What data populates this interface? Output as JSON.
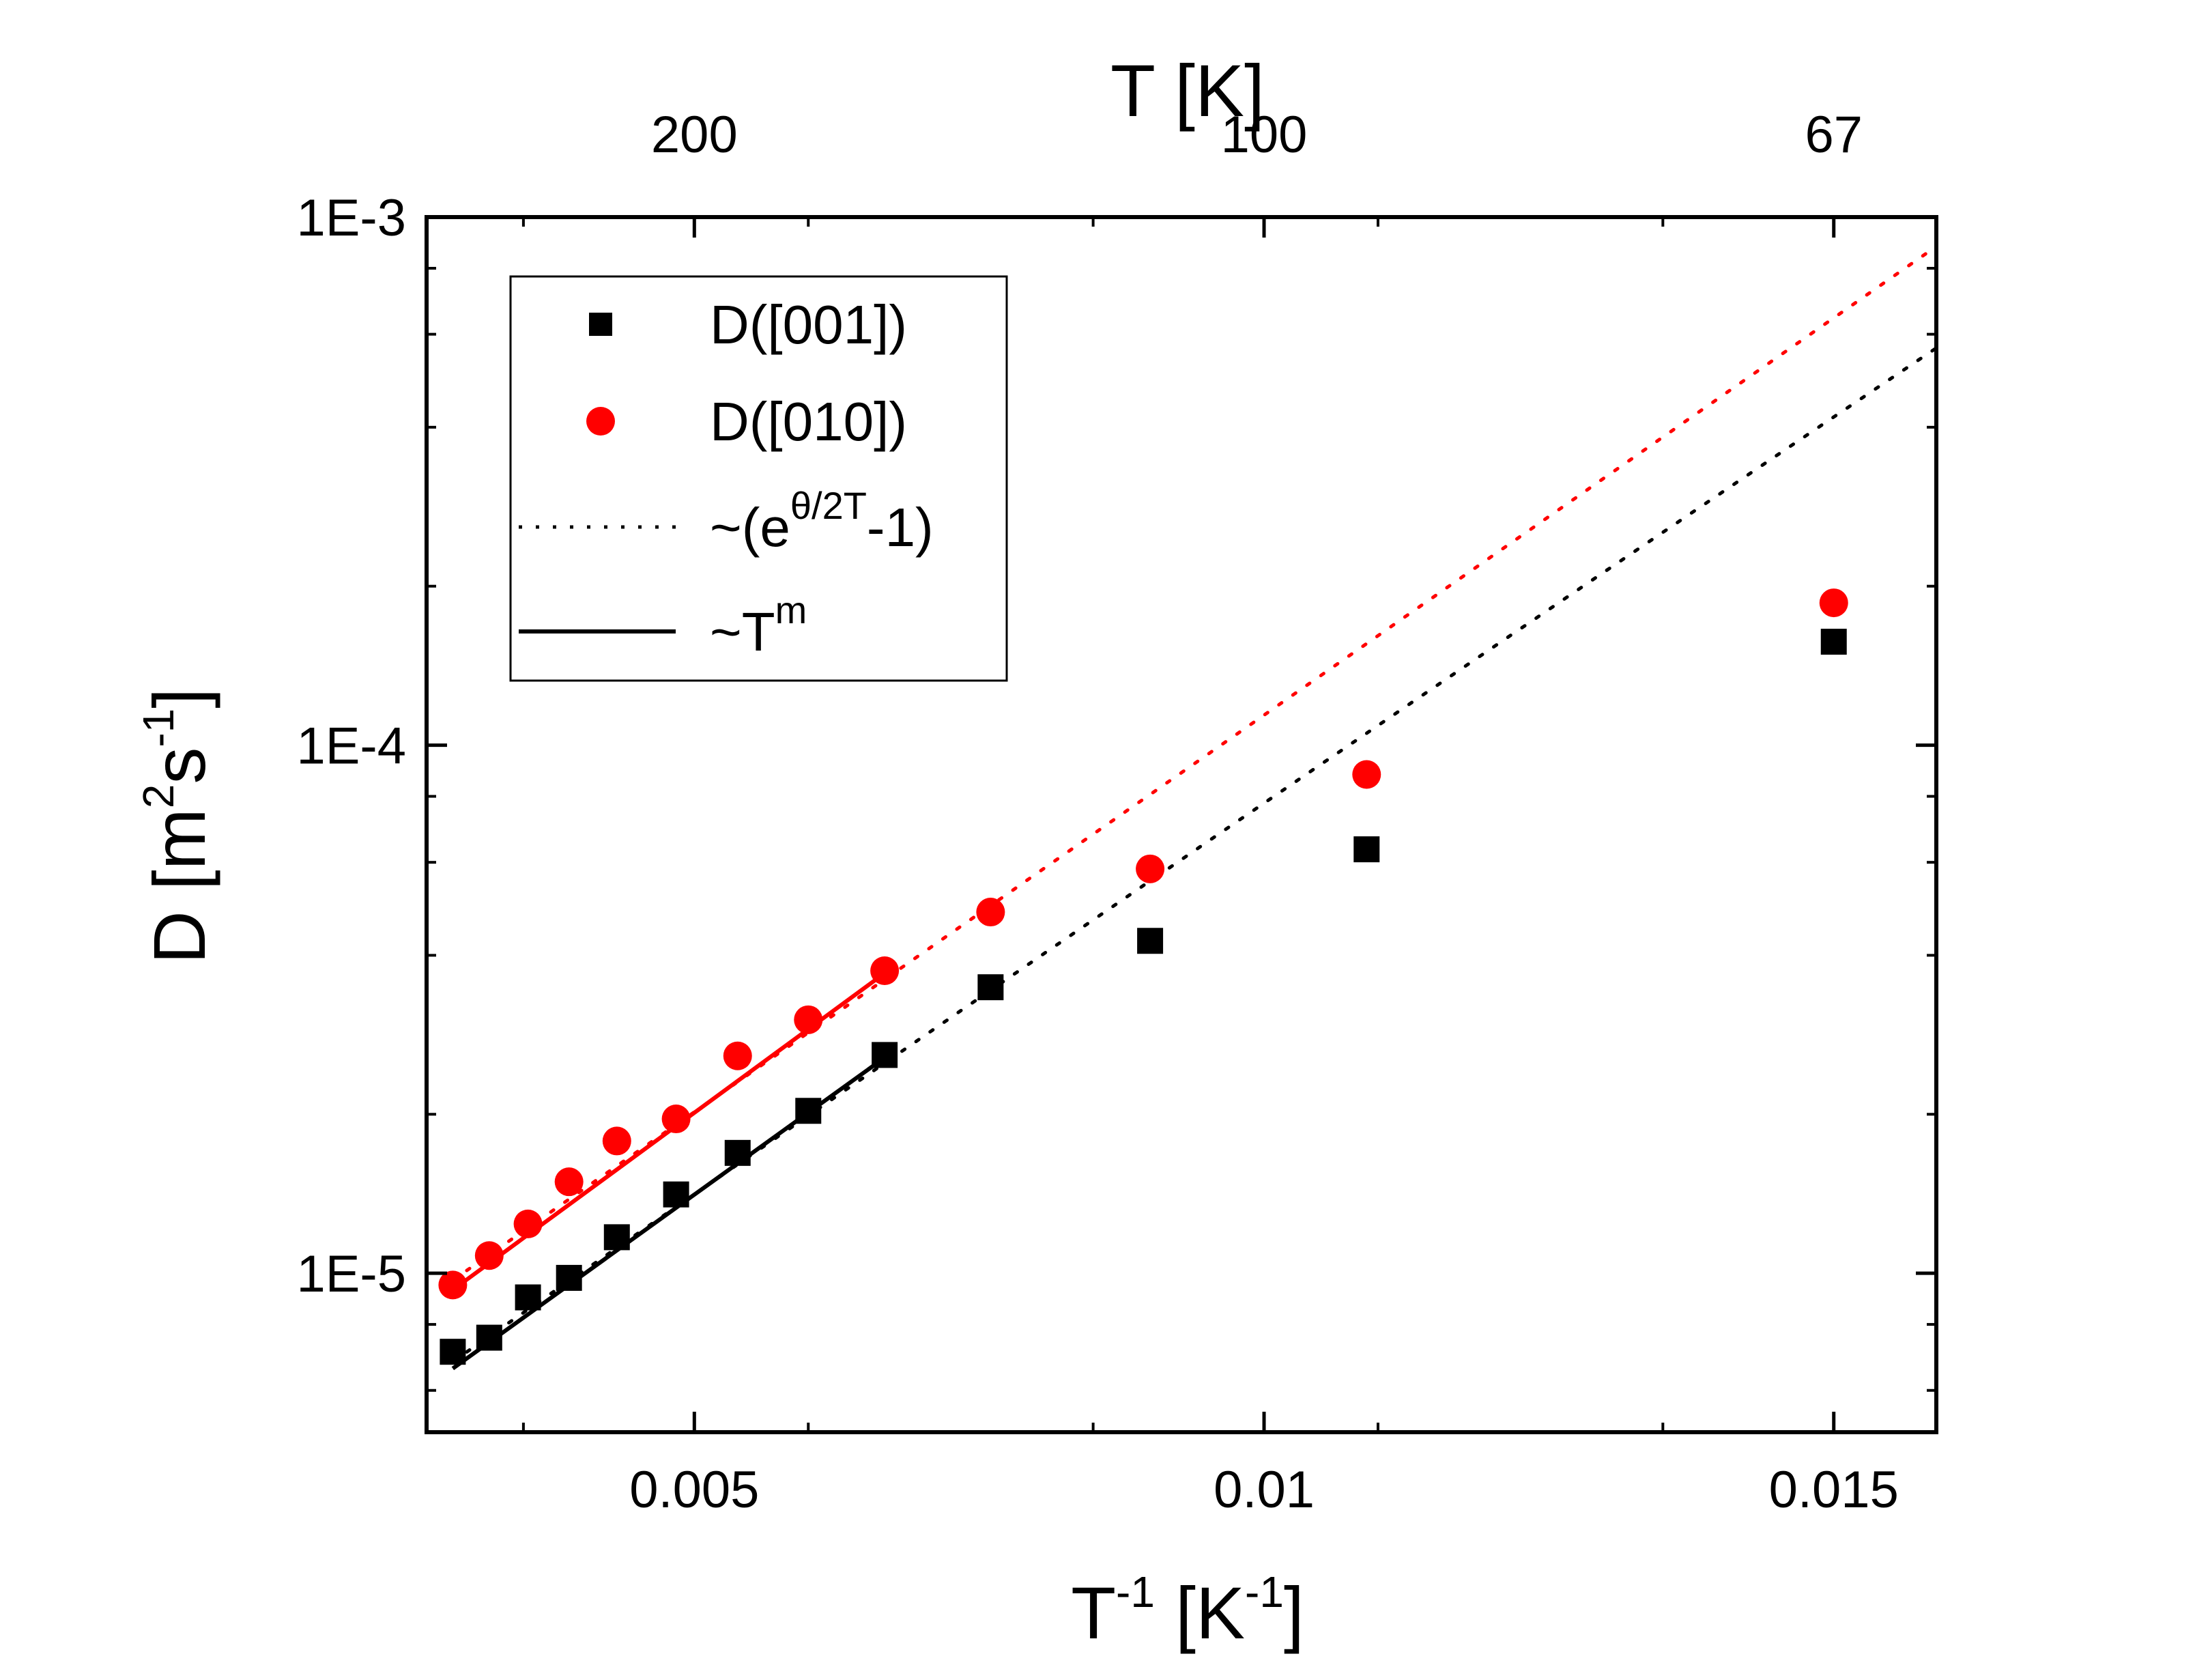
{
  "chart_data": {
    "type": "scatter",
    "x_scale": "linear",
    "y_scale": "log",
    "xlim": [
      0.00265,
      0.0159
    ],
    "ylim": [
      5e-06,
      0.001
    ],
    "xlabel": {
      "base": "T",
      "exp": "-1",
      "mid": " [K",
      "exp2": "-1",
      "end": "]"
    },
    "ylabel": {
      "a": "D [m",
      "exp1": "2",
      "b": "s",
      "exp2": "-1",
      "c": "]"
    },
    "top_axis_title": "T [K]",
    "x_ticks": [
      {
        "value": 0.005,
        "label": "0.005"
      },
      {
        "value": 0.01,
        "label": "0.01"
      },
      {
        "value": 0.015,
        "label": "0.015"
      }
    ],
    "y_ticks": [
      {
        "value": 1e-05,
        "label": "1E-5"
      },
      {
        "value": 0.0001,
        "label": "1E-4"
      },
      {
        "value": 0.001,
        "label": "1E-3"
      }
    ],
    "top_ticks": [
      {
        "value": 0.005,
        "label": "200"
      },
      {
        "value": 0.01,
        "label": "100"
      },
      {
        "value": 0.015,
        "label": "67"
      }
    ],
    "series": [
      {
        "name": "D([001])",
        "marker": "square",
        "color": "#000000",
        "points": [
          [
            0.00288,
            7.1e-06
          ],
          [
            0.0032,
            7.55e-06
          ],
          [
            0.00354,
            9e-06
          ],
          [
            0.0039,
            9.8e-06
          ],
          [
            0.00432,
            1.17e-05
          ],
          [
            0.00484,
            1.41e-05
          ],
          [
            0.00538,
            1.69e-05
          ],
          [
            0.006,
            2.03e-05
          ],
          [
            0.00667,
            2.59e-05
          ],
          [
            0.0076,
            3.48e-05
          ],
          [
            0.009,
            4.26e-05
          ],
          [
            0.0109,
            6.35e-05
          ],
          [
            0.015,
            0.000157
          ]
        ]
      },
      {
        "name": "D([010])",
        "marker": "circle",
        "color": "#ff0000",
        "points": [
          [
            0.00288,
            9.5e-06
          ],
          [
            0.0032,
            1.08e-05
          ],
          [
            0.00354,
            1.24e-05
          ],
          [
            0.0039,
            1.49e-05
          ],
          [
            0.00432,
            1.78e-05
          ],
          [
            0.00484,
            1.96e-05
          ],
          [
            0.00538,
            2.58e-05
          ],
          [
            0.006,
            3.02e-05
          ],
          [
            0.00667,
            3.74e-05
          ],
          [
            0.0076,
            4.83e-05
          ],
          [
            0.009,
            5.83e-05
          ],
          [
            0.0109,
            8.8e-05
          ],
          [
            0.015,
            0.000186
          ]
        ]
      }
    ],
    "fits": [
      {
        "kind": "power",
        "label": "~T^m",
        "color": "#000000",
        "x_from": 0.00288,
        "x_to": 0.00667,
        "points": [
          [
            0.00288,
            6.6e-06
          ],
          [
            0.00667,
            2.56e-05
          ]
        ]
      },
      {
        "kind": "power",
        "label": "~T^m",
        "color": "#ff0000",
        "x_from": 0.00288,
        "x_to": 0.00667,
        "points": [
          [
            0.00288,
            9.3e-06
          ],
          [
            0.00667,
            3.7e-05
          ]
        ]
      },
      {
        "kind": "exp",
        "label": "~(e^θ/2T-1)",
        "color": "#000000",
        "x_from": 0.00288,
        "x_to": 0.0159,
        "points": [
          [
            0.00288,
            6.8e-06
          ],
          [
            0.00667,
            2.5e-05
          ],
          [
            0.0159,
            0.000565
          ]
        ]
      },
      {
        "kind": "exp",
        "label": "~(e^θ/2T-1)",
        "color": "#ff0000",
        "x_from": 0.00288,
        "x_to": 0.0159,
        "points": [
          [
            0.00288,
            9.7e-06
          ],
          [
            0.00667,
            3.6e-05
          ],
          [
            0.0159,
            0.00088
          ]
        ]
      }
    ],
    "legend": {
      "position": "top-left",
      "entries": [
        {
          "text": "D([001])",
          "marker": "square",
          "color": "#000000"
        },
        {
          "text": "D([010])",
          "marker": "circle",
          "color": "#ff0000"
        },
        {
          "base": "~(e",
          "sup": "θ/2T",
          "end": "-1)",
          "line": "dotted",
          "color": "#000000"
        },
        {
          "base": "~T",
          "sup": "m",
          "line": "solid",
          "color": "#000000"
        }
      ]
    }
  }
}
